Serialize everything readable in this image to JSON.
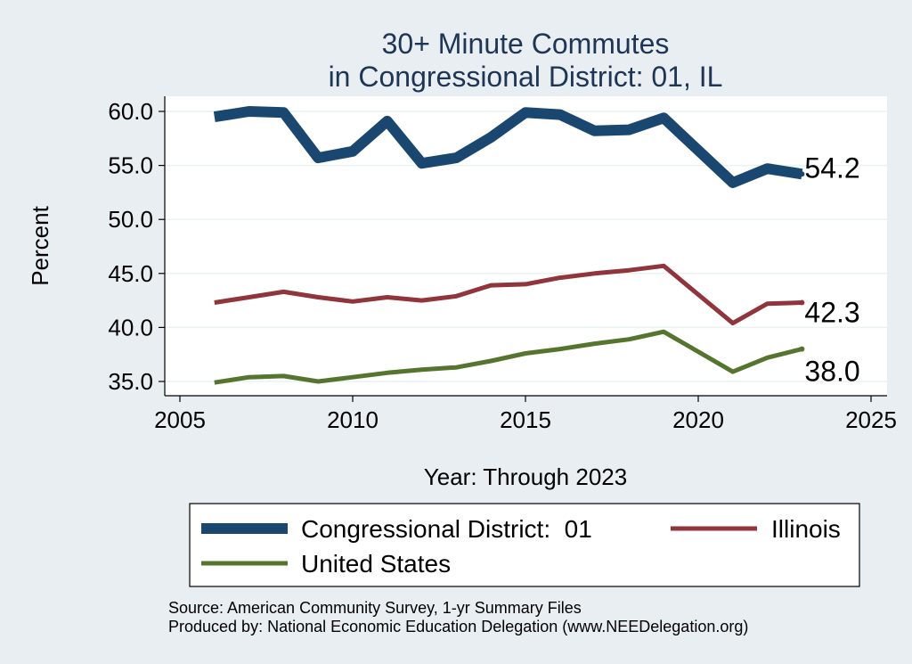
{
  "chart_data": {
    "type": "line",
    "title": [
      "30+ Minute Commutes",
      "in Congressional District:  01, IL"
    ],
    "xlabel": "Year: Through 2023",
    "ylabel": "Percent",
    "xlim": [
      2005,
      2025
    ],
    "ylim": [
      35,
      60
    ],
    "x_ticks": [
      2005,
      2010,
      2015,
      2020,
      2025
    ],
    "y_ticks": [
      35,
      40,
      45,
      50,
      55,
      60
    ],
    "y_tick_labels": [
      "35.0",
      "40.0",
      "45.0",
      "50.0",
      "55.0",
      "60.0"
    ],
    "grid": true,
    "legend_position": "bottom",
    "series": [
      {
        "name": "Congressional District:  01",
        "color": "#1a476f",
        "x": [
          2006,
          2007,
          2008,
          2009,
          2010,
          2011,
          2012,
          2013,
          2014,
          2015,
          2016,
          2017,
          2018,
          2019,
          2021,
          2022,
          2023
        ],
        "values": [
          59.5,
          60.0,
          59.9,
          55.7,
          56.3,
          59.1,
          55.2,
          55.7,
          57.6,
          59.9,
          59.7,
          58.2,
          58.3,
          59.4,
          53.4,
          54.7,
          54.2
        ],
        "end_label": "54.2"
      },
      {
        "name": "Illinois",
        "color": "#90353b",
        "x": [
          2006,
          2007,
          2008,
          2009,
          2010,
          2011,
          2012,
          2013,
          2014,
          2015,
          2016,
          2017,
          2018,
          2019,
          2021,
          2022,
          2023
        ],
        "values": [
          42.3,
          42.8,
          43.3,
          42.8,
          42.4,
          42.8,
          42.5,
          42.9,
          43.9,
          44.0,
          44.6,
          45.0,
          45.3,
          45.7,
          40.4,
          42.2,
          42.3
        ],
        "end_label": "42.3"
      },
      {
        "name": "United States",
        "color": "#55752f",
        "x": [
          2006,
          2007,
          2008,
          2009,
          2010,
          2011,
          2012,
          2013,
          2014,
          2015,
          2016,
          2017,
          2018,
          2019,
          2021,
          2022,
          2023
        ],
        "values": [
          34.9,
          35.4,
          35.5,
          35.0,
          35.4,
          35.8,
          36.1,
          36.3,
          36.9,
          37.6,
          38.0,
          38.5,
          38.9,
          39.6,
          35.9,
          37.2,
          38.0
        ],
        "end_label": "38.0"
      }
    ]
  },
  "source": [
    "Source: American Community Survey, 1-yr Summary Files",
    "Produced by: National Economic Education Delegation (www.NEEDelegation.org)"
  ]
}
